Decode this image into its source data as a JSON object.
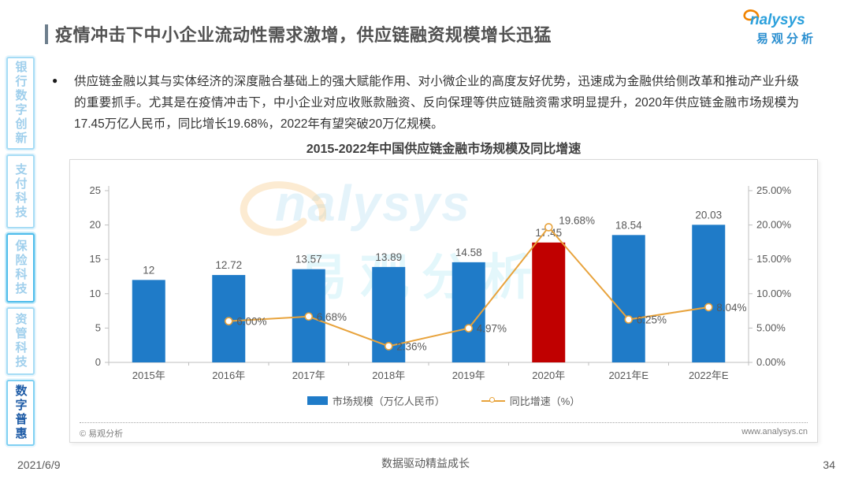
{
  "header": {
    "title": "疫情冲击下中小企业流动性需求激增，供应链融资规模增长迅猛"
  },
  "logo": {
    "brand": "nalysys",
    "brand_cn": "易观分析"
  },
  "watermark": {
    "brand": "nalysys",
    "brand_cn": "易观分析"
  },
  "sidebar": {
    "items": [
      {
        "label": "银行数字创新",
        "state": "normal"
      },
      {
        "label": "支付科技",
        "state": "normal"
      },
      {
        "label": "保险科技",
        "state": "highlighted"
      },
      {
        "label": "资管科技",
        "state": "normal"
      },
      {
        "label": "数字普惠",
        "state": "active"
      }
    ]
  },
  "bullet": {
    "text": "供应链金融以其与实体经济的深度融合基础上的强大赋能作用、对小微企业的高度友好优势，迅速成为金融供给侧改革和推动产业升级的重要抓手。尤其是在疫情冲击下，中小企业对应收账款融资、反向保理等供应链融资需求明显提升，2020年供应链金融市场规模为17.45万亿人民币，同比增长19.68%，2022年有望突破20万亿规模。"
  },
  "chart_data": {
    "type": "bar",
    "title": "2015-2022年中国供应链金融市场规模及同比增速",
    "categories": [
      "2015年",
      "2016年",
      "2017年",
      "2018年",
      "2019年",
      "2020年",
      "2021年E",
      "2022年E"
    ],
    "series": [
      {
        "name": "市场规模（万亿人民币）",
        "type": "bar",
        "values": [
          12,
          12.72,
          13.57,
          13.89,
          14.58,
          17.45,
          18.54,
          20.03
        ],
        "labels": [
          "12",
          "12.72",
          "13.57",
          "13.89",
          "14.58",
          "17.45",
          "18.54",
          "20.03"
        ]
      },
      {
        "name": "同比增速（%）",
        "type": "line",
        "values": [
          null,
          6.0,
          6.68,
          2.36,
          4.97,
          19.68,
          6.25,
          8.04
        ],
        "labels": [
          null,
          "6.00%",
          "6.68%",
          "2.36%",
          "4.97%",
          "19.68%",
          "6.25%",
          "8.04%"
        ]
      }
    ],
    "left_axis": {
      "min": 0,
      "max": 25,
      "ticks": [
        "0",
        "5",
        "10",
        "15",
        "20",
        "25"
      ],
      "grid": false
    },
    "right_axis": {
      "min": 0,
      "max": 25,
      "ticks": [
        "0.00%",
        "5.00%",
        "10.00%",
        "15.00%",
        "20.00%",
        "25.00%"
      ]
    },
    "legend_position": "bottom",
    "colors": {
      "bar": "#1f7bc8",
      "bar_highlight": "#c00000",
      "highlight_index": 5,
      "line": "#e8a33c",
      "axis": "#bfbfbf",
      "label": "#595959"
    }
  },
  "chart_footer": {
    "copyright": "© 易观分析",
    "website": "www.analysys.cn"
  },
  "footer": {
    "date": "2021/6/9",
    "slogan": "数据驱动精益成长",
    "page": "34"
  }
}
